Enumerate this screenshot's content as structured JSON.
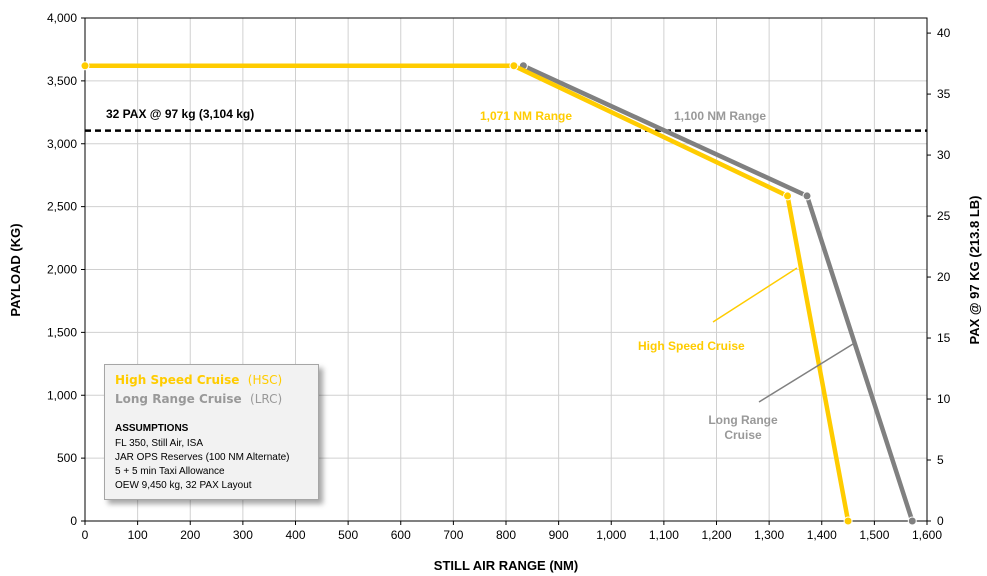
{
  "chart_data": {
    "type": "line",
    "xlabel": "STILL AIR RANGE (NM)",
    "ylabel": "PAYLOAD (KG)",
    "y2label": "PAX @ 97 KG (213.8 LB)",
    "xlim": [
      0,
      1600
    ],
    "ylim": [
      0,
      4000
    ],
    "y2lim": [
      0,
      41.237
    ],
    "x_ticks": [
      "0",
      "100",
      "200",
      "300",
      "400",
      "500",
      "600",
      "700",
      "800",
      "900",
      "1,000",
      "1,100",
      "1,200",
      "1,300",
      "1,400",
      "1,500",
      "1,600"
    ],
    "y_ticks": [
      "0",
      "500",
      "1,000",
      "1,500",
      "2,000",
      "2,500",
      "3,000",
      "3,500",
      "4,000"
    ],
    "y2_ticks": [
      "0",
      "5",
      "10",
      "15",
      "20",
      "25",
      "30",
      "35",
      "40"
    ],
    "grid": true,
    "series": [
      {
        "name": "High Speed Cruise",
        "color": "#FFCC00",
        "x": [
          0,
          815,
          1335,
          1450
        ],
        "y": [
          3620,
          3620,
          2585,
          0
        ]
      },
      {
        "name": "Long Range Cruise",
        "color": "#808080",
        "x": [
          833,
          1372,
          1572
        ],
        "y": [
          3620,
          2585,
          0
        ]
      }
    ],
    "reference_line": {
      "label": "32 PAX @ 97 kg (3,104 kg)",
      "y": 3104,
      "style": "dashed"
    },
    "annotations": [
      {
        "text": "1,071 NM Range",
        "color": "#FFCC00"
      },
      {
        "text": "1,100 NM Range",
        "color": "#999999"
      },
      {
        "text": "High Speed Cruise",
        "color": "#FFCC00"
      },
      {
        "text": "Long Range",
        "color": "#999999"
      },
      {
        "text": "Cruise",
        "color": "#999999"
      }
    ],
    "legend": {
      "position": "bottom-left",
      "items": [
        {
          "label": "High Speed Cruise",
          "abbr": "(HSC)",
          "color": "#FFCC00"
        },
        {
          "label": "Long Range Cruise",
          "abbr": "(LRC)",
          "color": "#999999"
        }
      ],
      "assumptions_title": "ASSUMPTIONS",
      "assumptions": [
        "FL 350,  Still Air,  ISA",
        "JAR OPS Reserves (100 NM Alternate)",
        "5 + 5 min Taxi Allowance",
        "OEW 9,450 kg,  32 PAX Layout"
      ]
    }
  }
}
